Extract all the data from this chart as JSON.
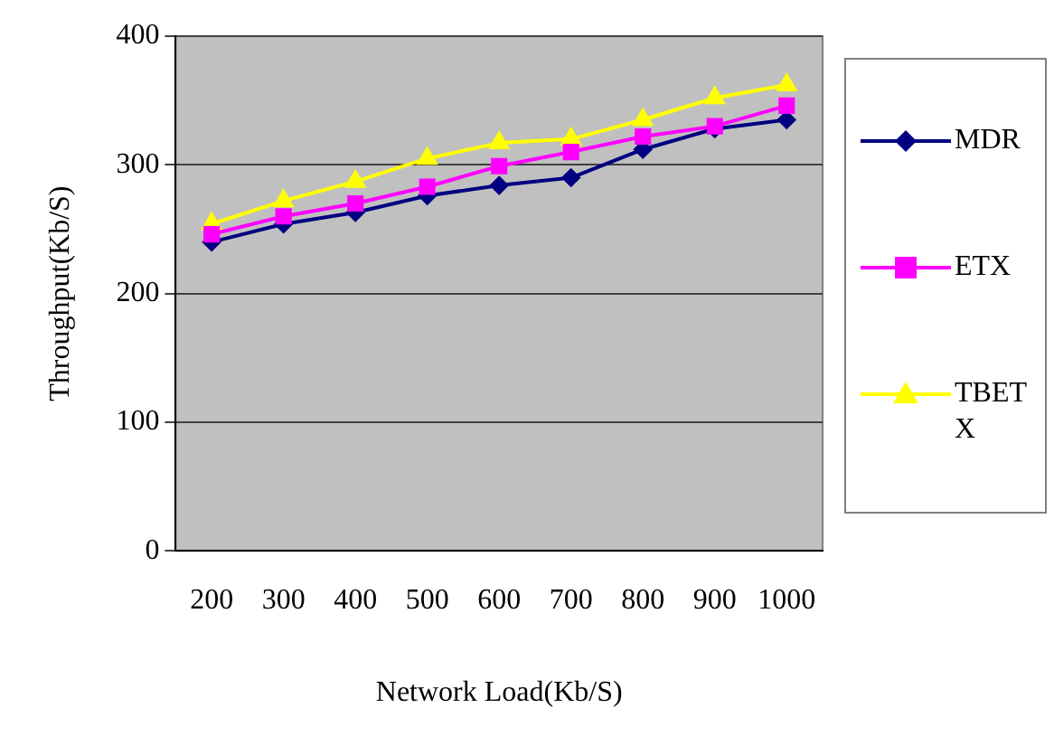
{
  "chart_data": {
    "type": "line",
    "xlabel": "Network Load(Kb/S)",
    "ylabel": "Throughput(Kb/S)",
    "categories": [
      "200",
      "300",
      "400",
      "500",
      "600",
      "700",
      "800",
      "900",
      "1000"
    ],
    "series": [
      {
        "name": "MDR",
        "color": "#000080",
        "marker": "diamond",
        "values": [
          240,
          254,
          263,
          276,
          284,
          290,
          312,
          328,
          335
        ]
      },
      {
        "name": "ETX",
        "color": "#ff00ff",
        "marker": "square",
        "values": [
          246,
          260,
          270,
          283,
          299,
          310,
          322,
          330,
          346
        ]
      },
      {
        "name": "TBETX",
        "color": "#ffff00",
        "marker": "triangle",
        "values": [
          254,
          272,
          287,
          305,
          317,
          320,
          335,
          352,
          362
        ]
      }
    ],
    "ylim": [
      0,
      400
    ],
    "yticks": [
      0,
      100,
      200,
      300,
      400
    ],
    "grid": "y",
    "legend": "right"
  }
}
